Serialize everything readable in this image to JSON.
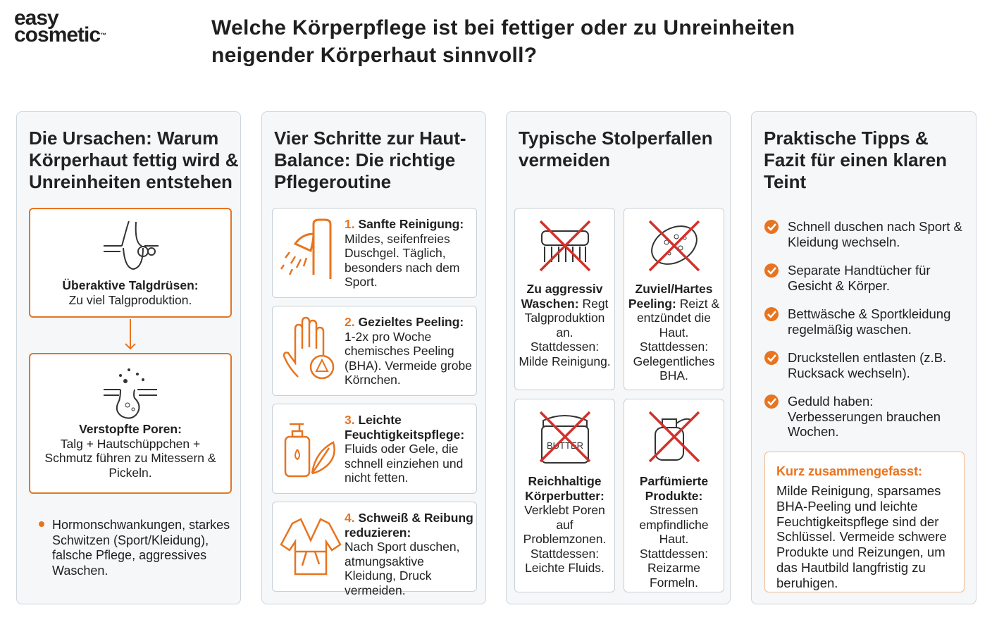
{
  "logo": {
    "line1": "easy",
    "line2": "cosmetic",
    "mark": "™"
  },
  "title": "Welche Körperpflege ist bei fettiger oder zu Unreinheiten neigender Körperhaut sinnvoll?",
  "causes": {
    "heading": "Die Ursachen: Warum Körperhaut fettig wird & Unreinheiten entstehen",
    "cards": [
      {
        "title": "Überaktive Talgdrüsen:",
        "text": "Zu viel Talgproduktion."
      },
      {
        "title": "Verstopfte Poren:",
        "text": "Talg + Hautschüppchen + Schmutz führen zu Mitessern & Pickeln."
      }
    ],
    "bullet": "Hormonschwankungen, starkes Schwitzen (Sport/Kleidung), falsche Pflege, aggressives Waschen."
  },
  "routine": {
    "heading": "Vier Schritte zur Haut-Balance: Die richtige Pflegeroutine",
    "steps": [
      {
        "number": "1.",
        "title": "Sanfte Reinigung:",
        "text": "Mildes, seifenfreies Duschgel. Täglich, besonders nach dem Sport."
      },
      {
        "number": "2.",
        "title": "Gezieltes Peeling:",
        "text": "1-2x pro Woche chemisches Peeling (BHA). Vermeide grobe Körnchen."
      },
      {
        "number": "3.",
        "title": "Leichte Feuchtigkeitspflege:",
        "text": "Fluids oder Gele, die schnell einziehen und nicht fetten."
      },
      {
        "number": "4.",
        "title": "Schweiß & Reibung reduzieren:",
        "text": "Nach Sport duschen, atmungsaktive Kleidung, Druck vermeiden."
      }
    ]
  },
  "pitfalls": {
    "heading": "Typische Stolperfallen vermeiden",
    "items": [
      {
        "title": "Zu aggressiv Waschen:",
        "text": "Regt Talgproduktion an.",
        "instead": "Stattdessen: Milde Reinigung."
      },
      {
        "title": "Zuviel/Hartes Peeling:",
        "text": "Reizt & entzündet die Haut.",
        "instead": "Stattdessen: Gelegentliches BHA."
      },
      {
        "title": "Reichhaltige Körperbutter:",
        "text": "Verklebt Poren auf Problemzonen.",
        "instead": "Stattdessen: Leichte Fluids.",
        "icon_label": "BUTTER"
      },
      {
        "title": "Parfümierte Produkte:",
        "text": "Stressen empfindliche Haut.",
        "instead": "Stattdessen: Reizarme Formeln."
      }
    ]
  },
  "tips": {
    "heading": "Praktische Tipps & Fazit für einen klaren Teint",
    "items": [
      "Schnell duschen nach Sport & Kleidung wechseln.",
      "Separate Handtücher für Gesicht & Körper.",
      "Bettwäsche & Sportkleidung regelmäßig waschen.",
      "Druckstellen entlasten (z.B. Rucksack wechseln).",
      "Geduld haben: Verbesserungen brauchen Wochen."
    ],
    "summary": {
      "title": "Kurz zusammengefasst:",
      "text": "Milde Reinigung, sparsames BHA-Peeling und leichte Feuchtigkeitspflege sind der Schlüssel. Vermeide schwere Produkte und Reizungen, um das Hautbild langfristig zu beruhigen."
    }
  }
}
